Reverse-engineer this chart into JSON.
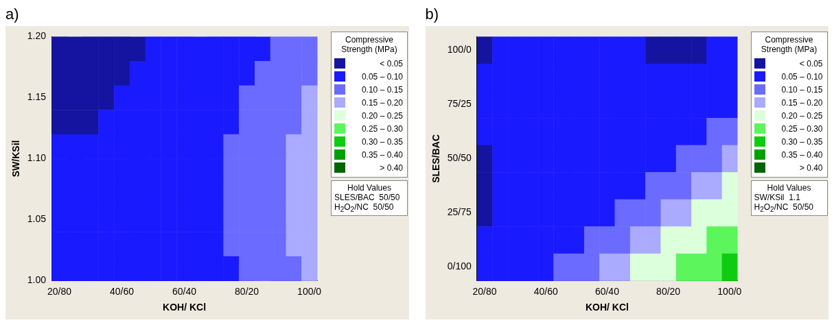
{
  "chart_data": [
    {
      "type": "heatmap",
      "title": "a)",
      "xlabel": "KOH/ KCl",
      "ylabel": "SW/KSil",
      "legend_title": "Compressive Strength (MPa)",
      "categories": [
        "20/80",
        null,
        null,
        null,
        "40/60",
        null,
        null,
        null,
        "60/40",
        null,
        null,
        null,
        "80/20",
        null,
        null,
        null,
        "100/0"
      ],
      "ylim": [
        1,
        1.2
      ],
      "yticks": [
        {
          "value": 1,
          "label": "1.00"
        },
        1.05,
        {
          "value": 1.1,
          "label": "1.10"
        },
        1.15,
        {
          "value": 1.2,
          "label": "1.20"
        }
      ],
      "clim": [
        0,
        0.45
      ],
      "cticks": [
        {
          "value": 0.025,
          "label": "< 0.05"
        },
        {
          "value": 0.075,
          "label": "0.05 – 0.10"
        },
        {
          "value": 0.125,
          "label": "0.10 – 0.15"
        },
        {
          "value": 0.175,
          "label": "0.15 – 0.20"
        },
        {
          "value": 0.225,
          "label": "0.20 – 0.25"
        },
        {
          "value": 0.275,
          "label": "0.25 – 0.30"
        },
        {
          "value": 0.325,
          "label": "0.30 – 0.35"
        },
        {
          "value": 0.375,
          "label": "0.35 – 0.40"
        },
        {
          "value": 0.425,
          "label": "> 0.40"
        }
      ],
      "colors": [
        "#1414a0",
        "#1a1aff",
        "#6b6bff",
        "#aaaaff",
        "#dcffdc",
        "#5cf55c",
        "#10cc10",
        "#00a000",
        "#006400"
      ],
      "annotations": [
        "Hold Values",
        "SLES/BAC  50/50",
        "H$_{2}$O$_{2}$/NC  50/50"
      ],
      "cells": [
        [
          0.025,
          0.025,
          0.025,
          0.025,
          0.025,
          0.025,
          0.075,
          0.075,
          0.075,
          0.075,
          0.075,
          0.075,
          0.075,
          0.075,
          0.125,
          0.125,
          0.125
        ],
        [
          0.025,
          0.025,
          0.025,
          0.025,
          0.025,
          0.075,
          0.075,
          0.075,
          0.075,
          0.075,
          0.075,
          0.075,
          0.075,
          0.125,
          0.125,
          0.125,
          0.125
        ],
        [
          0.025,
          0.025,
          0.025,
          0.025,
          0.075,
          0.075,
          0.075,
          0.075,
          0.075,
          0.075,
          0.075,
          0.075,
          0.125,
          0.125,
          0.125,
          0.125,
          0.175
        ],
        [
          0.025,
          0.025,
          0.025,
          0.075,
          0.075,
          0.075,
          0.075,
          0.075,
          0.075,
          0.075,
          0.075,
          0.075,
          0.125,
          0.125,
          0.125,
          0.125,
          0.175
        ],
        [
          0.075,
          0.075,
          0.075,
          0.075,
          0.075,
          0.075,
          0.075,
          0.075,
          0.075,
          0.075,
          0.075,
          0.125,
          0.125,
          0.125,
          0.125,
          0.175,
          0.175
        ],
        [
          0.075,
          0.075,
          0.075,
          0.075,
          0.075,
          0.075,
          0.075,
          0.075,
          0.075,
          0.075,
          0.075,
          0.125,
          0.125,
          0.125,
          0.125,
          0.175,
          0.175
        ],
        [
          0.075,
          0.075,
          0.075,
          0.075,
          0.075,
          0.075,
          0.075,
          0.075,
          0.075,
          0.075,
          0.075,
          0.125,
          0.125,
          0.125,
          0.125,
          0.175,
          0.175
        ],
        [
          0.075,
          0.075,
          0.075,
          0.075,
          0.075,
          0.075,
          0.075,
          0.075,
          0.075,
          0.075,
          0.075,
          0.125,
          0.125,
          0.125,
          0.125,
          0.175,
          0.175
        ],
        [
          0.075,
          0.075,
          0.075,
          0.075,
          0.075,
          0.075,
          0.075,
          0.075,
          0.075,
          0.075,
          0.075,
          0.125,
          0.125,
          0.125,
          0.125,
          0.175,
          0.175
        ],
        [
          0.075,
          0.075,
          0.075,
          0.075,
          0.075,
          0.075,
          0.075,
          0.075,
          0.075,
          0.075,
          0.075,
          0.075,
          0.125,
          0.125,
          0.125,
          0.125,
          0.175
        ]
      ]
    },
    {
      "type": "heatmap",
      "title": "b)",
      "xlabel": "KOH/ KCl",
      "ylabel": "SLES/BAC",
      "legend_title": "Compressive Strength (MPa)",
      "categories": [
        "20/80",
        null,
        null,
        null,
        "40/60",
        null,
        null,
        null,
        "60/40",
        null,
        null,
        null,
        "80/20",
        null,
        null,
        null,
        "100/0"
      ],
      "y_categories": [
        "100/0",
        null,
        "75/25",
        null,
        "50/50",
        null,
        "25/75",
        null,
        "0/100"
      ],
      "clim": [
        0,
        0.45
      ],
      "cticks": [
        {
          "value": 0.025,
          "label": "< 0.05"
        },
        {
          "value": 0.075,
          "label": "0.05 – 0.10"
        },
        {
          "value": 0.125,
          "label": "0.10 – 0.15"
        },
        {
          "value": 0.175,
          "label": "0.15 – 0.20"
        },
        {
          "value": 0.225,
          "label": "0.20 – 0.25"
        },
        {
          "value": 0.275,
          "label": "0.25 – 0.30"
        },
        {
          "value": 0.325,
          "label": "0.30 – 0.35"
        },
        {
          "value": 0.375,
          "label": "0.35 – 0.40"
        },
        {
          "value": 0.425,
          "label": "> 0.40"
        }
      ],
      "colors": [
        "#1414a0",
        "#1a1aff",
        "#6b6bff",
        "#aaaaff",
        "#dcffdc",
        "#5cf55c",
        "#10cc10",
        "#00a000",
        "#006400"
      ],
      "annotations": [
        "Hold Values",
        "SW/KSil  1.1",
        "H$_{2}$O$_{2}$/NC  50/50"
      ],
      "cells": [
        [
          0.025,
          0.075,
          0.075,
          0.075,
          0.075,
          0.075,
          0.075,
          0.075,
          0.075,
          0.075,
          0.075,
          0.025,
          0.025,
          0.025,
          0.025,
          0.075,
          0.075
        ],
        [
          0.075,
          0.075,
          0.075,
          0.075,
          0.075,
          0.075,
          0.075,
          0.075,
          0.075,
          0.075,
          0.075,
          0.075,
          0.075,
          0.075,
          0.075,
          0.075,
          0.075
        ],
        [
          0.075,
          0.075,
          0.075,
          0.075,
          0.075,
          0.075,
          0.075,
          0.075,
          0.075,
          0.075,
          0.075,
          0.075,
          0.075,
          0.075,
          0.075,
          0.075,
          0.075
        ],
        [
          0.075,
          0.075,
          0.075,
          0.075,
          0.075,
          0.075,
          0.075,
          0.075,
          0.075,
          0.075,
          0.075,
          0.075,
          0.075,
          0.075,
          0.075,
          0.125,
          0.125
        ],
        [
          0.025,
          0.075,
          0.075,
          0.075,
          0.075,
          0.075,
          0.075,
          0.075,
          0.075,
          0.075,
          0.075,
          0.075,
          0.075,
          0.125,
          0.125,
          0.125,
          0.175
        ],
        [
          0.025,
          0.075,
          0.075,
          0.075,
          0.075,
          0.075,
          0.075,
          0.075,
          0.075,
          0.075,
          0.075,
          0.125,
          0.125,
          0.125,
          0.175,
          0.175,
          0.225
        ],
        [
          0.025,
          0.075,
          0.075,
          0.075,
          0.075,
          0.075,
          0.075,
          0.075,
          0.075,
          0.125,
          0.125,
          0.125,
          0.175,
          0.175,
          0.225,
          0.225,
          0.225
        ],
        [
          0.075,
          0.075,
          0.075,
          0.075,
          0.075,
          0.075,
          0.075,
          0.125,
          0.125,
          0.125,
          0.175,
          0.175,
          0.225,
          0.225,
          0.225,
          0.275,
          0.275
        ],
        [
          0.075,
          0.075,
          0.075,
          0.075,
          0.075,
          0.125,
          0.125,
          0.125,
          0.175,
          0.175,
          0.225,
          0.225,
          0.225,
          0.275,
          0.275,
          0.275,
          0.325
        ]
      ]
    }
  ]
}
